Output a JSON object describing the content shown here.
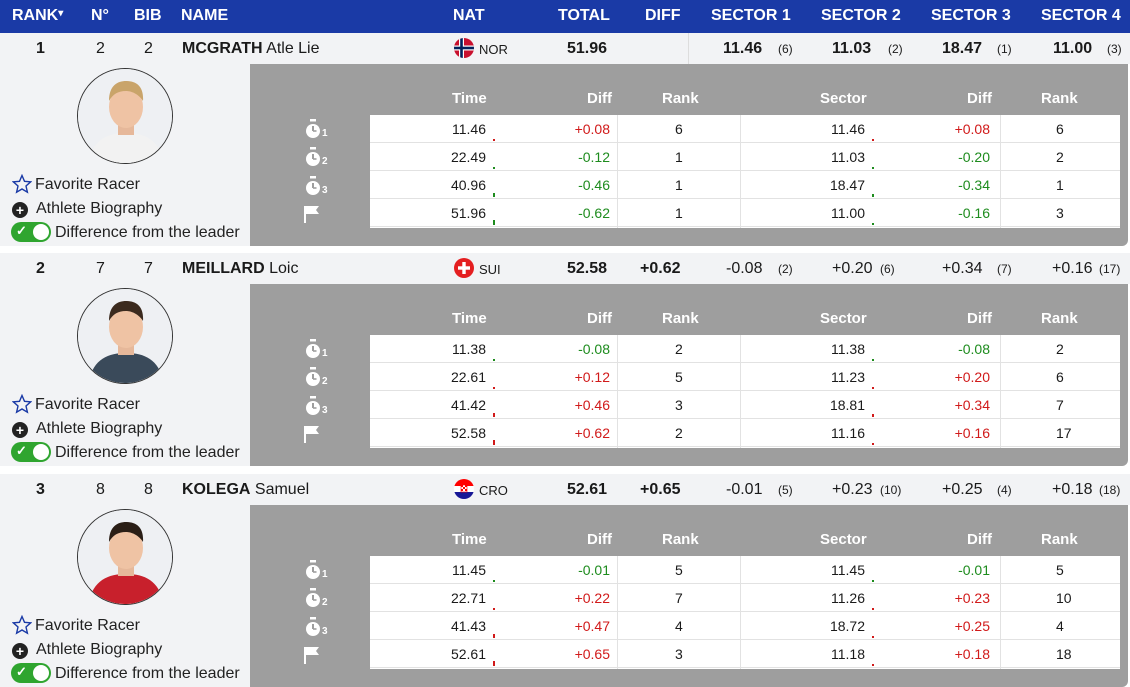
{
  "header": {
    "rank": "RANK",
    "rank_sort": "▾",
    "no": "N°",
    "bib": "BIB",
    "name": "NAME",
    "nat": "NAT",
    "total": "TOTAL",
    "diff": "DIFF",
    "sector1": "SECTOR 1",
    "sector2": "SECTOR 2",
    "sector3": "SECTOR 3",
    "sector4": "SECTOR 4"
  },
  "labels": {
    "time": "Time",
    "diff": "Diff",
    "rank": "Rank",
    "sector": "Sector",
    "favorite": "Favorite Racer",
    "biography": "Athlete Biography",
    "difference": "Difference from the leader"
  },
  "colors": {
    "header_bg": "#1a3aa6",
    "positive": "#d11a1a",
    "negative": "#1e8c1e",
    "toggle_on": "#2fa52f"
  },
  "athletes": [
    {
      "rank": "1",
      "no": "2",
      "bib": "2",
      "last": "MCGRATH",
      "first": "Atle Lie",
      "nat": "NOR",
      "total": "51.96",
      "diff": "",
      "s1": "11.46",
      "s1r": "(6)",
      "s2": "11.03",
      "s2r": "(2)",
      "s3": "18.47",
      "s3r": "(1)",
      "s4": "11.00",
      "s4r": "(3)",
      "splits": [
        {
          "time": "11.46",
          "diff": "+0.08",
          "rank": "6",
          "sector": "11.46",
          "sdiff": "+0.08",
          "srank": "6"
        },
        {
          "time": "22.49",
          "diff": "-0.12",
          "rank": "1",
          "sector": "11.03",
          "sdiff": "-0.20",
          "srank": "2"
        },
        {
          "time": "40.96",
          "diff": "-0.46",
          "rank": "1",
          "sector": "18.47",
          "sdiff": "-0.34",
          "srank": "1"
        },
        {
          "time": "51.96",
          "diff": "-0.62",
          "rank": "1",
          "sector": "11.00",
          "sdiff": "-0.16",
          "srank": "3"
        }
      ]
    },
    {
      "rank": "2",
      "no": "7",
      "bib": "7",
      "last": "MEILLARD",
      "first": "Loic",
      "nat": "SUI",
      "total": "52.58",
      "diff": "+0.62",
      "s1": "-0.08",
      "s1r": "(2)",
      "s2": "+0.20",
      "s2r": "(6)",
      "s3": "+0.34",
      "s3r": "(7)",
      "s4": "+0.16",
      "s4r": "(17)",
      "splits": [
        {
          "time": "11.38",
          "diff": "-0.08",
          "rank": "2",
          "sector": "11.38",
          "sdiff": "-0.08",
          "srank": "2"
        },
        {
          "time": "22.61",
          "diff": "+0.12",
          "rank": "5",
          "sector": "11.23",
          "sdiff": "+0.20",
          "srank": "6"
        },
        {
          "time": "41.42",
          "diff": "+0.46",
          "rank": "3",
          "sector": "18.81",
          "sdiff": "+0.34",
          "srank": "7"
        },
        {
          "time": "52.58",
          "diff": "+0.62",
          "rank": "2",
          "sector": "11.16",
          "sdiff": "+0.16",
          "srank": "17"
        }
      ]
    },
    {
      "rank": "3",
      "no": "8",
      "bib": "8",
      "last": "KOLEGA",
      "first": "Samuel",
      "nat": "CRO",
      "total": "52.61",
      "diff": "+0.65",
      "s1": "-0.01",
      "s1r": "(5)",
      "s2": "+0.23",
      "s2r": "(10)",
      "s3": "+0.25",
      "s3r": "(4)",
      "s4": "+0.18",
      "s4r": "(18)",
      "splits": [
        {
          "time": "11.45",
          "diff": "-0.01",
          "rank": "5",
          "sector": "11.45",
          "sdiff": "-0.01",
          "srank": "5"
        },
        {
          "time": "22.71",
          "diff": "+0.22",
          "rank": "7",
          "sector": "11.26",
          "sdiff": "+0.23",
          "srank": "10"
        },
        {
          "time": "41.43",
          "diff": "+0.47",
          "rank": "4",
          "sector": "18.72",
          "sdiff": "+0.25",
          "srank": "4"
        },
        {
          "time": "52.61",
          "diff": "+0.65",
          "rank": "3",
          "sector": "11.18",
          "sdiff": "+0.18",
          "srank": "18"
        }
      ]
    }
  ],
  "split_icons": [
    "stopwatch-1-icon",
    "stopwatch-2-icon",
    "stopwatch-3-icon",
    "finish-flag-icon"
  ],
  "split_numbers": [
    "1",
    "2",
    "3"
  ]
}
